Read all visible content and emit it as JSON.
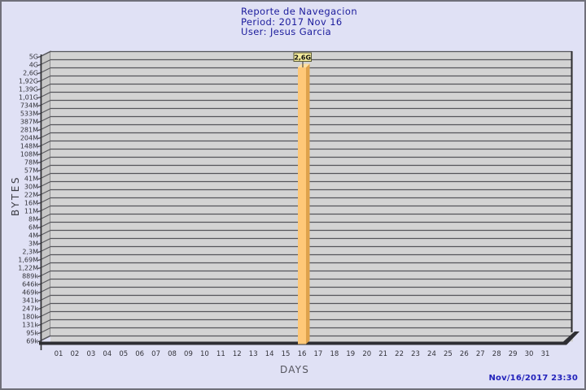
{
  "header": {
    "title": "Reporte de Navegacion",
    "period": "Period: 2017 Nov 16",
    "user": "User: Jesus Garcia"
  },
  "footer": {
    "timestamp": "Nov/16/2017 23:30"
  },
  "chart_data": {
    "type": "bar",
    "title": "Reporte de Navegacion",
    "subtitle": [
      "Period: 2017 Nov 16",
      "User: Jesus Garcia"
    ],
    "xlabel": "DAYS",
    "ylabel": "BYTES",
    "unit": "bytes",
    "y_scale": "logarithmic (custom ticks)",
    "grid": true,
    "legend": null,
    "categories": [
      "01",
      "02",
      "03",
      "04",
      "05",
      "06",
      "07",
      "08",
      "09",
      "10",
      "11",
      "12",
      "13",
      "14",
      "15",
      "16",
      "17",
      "18",
      "19",
      "20",
      "21",
      "22",
      "23",
      "24",
      "25",
      "26",
      "27",
      "28",
      "29",
      "30",
      "31"
    ],
    "values": [
      0,
      0,
      0,
      0,
      0,
      0,
      0,
      0,
      0,
      0,
      0,
      0,
      0,
      0,
      0,
      2600000000,
      0,
      0,
      0,
      0,
      0,
      0,
      0,
      0,
      0,
      0,
      0,
      0,
      0,
      0,
      0
    ],
    "bars": [
      {
        "category": "16",
        "label": "2,6G",
        "value_bytes": 2600000000
      }
    ],
    "y_tick_labels": [
      "5G",
      "4G",
      "2,6G",
      "1,92G",
      "1,39G",
      "1,01G",
      "734M",
      "533M",
      "387M",
      "281M",
      "204M",
      "148M",
      "108M",
      "78M",
      "57M",
      "41M",
      "30M",
      "22M",
      "16M",
      "11M",
      "8M",
      "6M",
      "4M",
      "3M",
      "2,3M",
      "1,69M",
      "1,22M",
      "889k",
      "646k",
      "469k",
      "341k",
      "247k",
      "180k",
      "131k",
      "95k",
      "69k"
    ]
  },
  "colors": {
    "page_bg": "#e0e1f5",
    "page_border": "#70707a",
    "title_text": "#1b1b9c",
    "timestamp_text": "#2222bb",
    "plot_bg": "#d3d3d3",
    "wall_bg": "#c7c7c7",
    "gridline": "#55555a",
    "axis_line": "#2e2e33",
    "axis_text": "#33333a",
    "bar_face": "#FFC878",
    "bar_side": "#DFA24C",
    "bar_top": "#FFDFA0",
    "value_box_bg": "#F4EB9C",
    "value_box_border": "#5a5a33",
    "value_box_text": "#101010"
  }
}
